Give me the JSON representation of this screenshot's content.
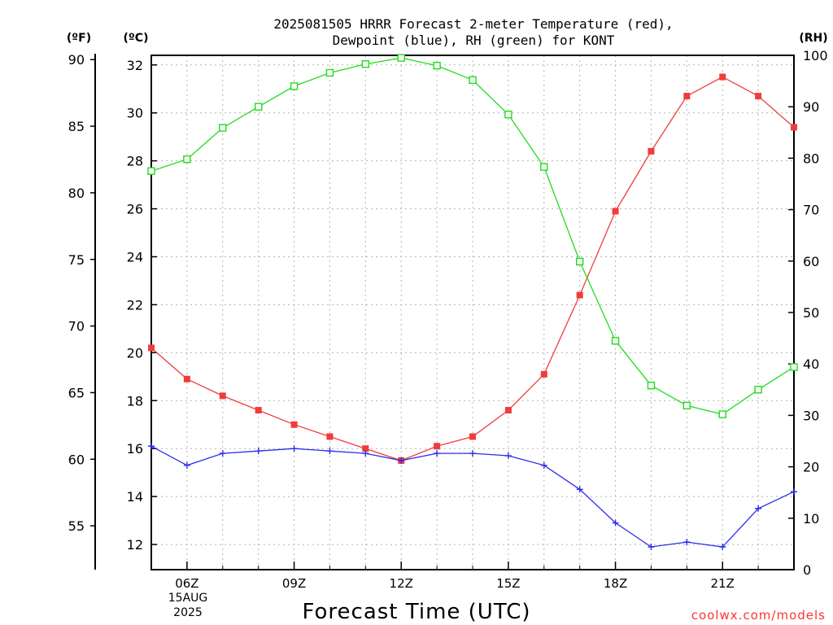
{
  "chart_data": {
    "type": "line",
    "title_lines": [
      "2025081505 HRRR Forecast 2-meter Temperature (red),",
      "Dewpoint (blue), RH (green) for KONT"
    ],
    "xlabel": "Forecast Time (UTC)",
    "x_hours": [
      5,
      6,
      7,
      8,
      9,
      10,
      11,
      12,
      13,
      14,
      15,
      16,
      17,
      18,
      19,
      20,
      21,
      22,
      23
    ],
    "xlim": [
      5,
      23
    ],
    "x_ticks": [
      {
        "hour": 6,
        "label": "06Z"
      },
      {
        "hour": 9,
        "label": "09Z"
      },
      {
        "hour": 12,
        "label": "12Z"
      },
      {
        "hour": 15,
        "label": "15Z"
      },
      {
        "hour": 18,
        "label": "18Z"
      },
      {
        "hour": 21,
        "label": "21Z"
      }
    ],
    "date_label": [
      "15AUG",
      "2025"
    ],
    "y_celsius": {
      "unit_label": "(ºC)",
      "ylim": [
        10.95,
        32.4
      ],
      "ticks": [
        12,
        14,
        16,
        18,
        20,
        22,
        24,
        26,
        28,
        30,
        32
      ]
    },
    "y_fahrenheit": {
      "unit_label": "(ºF)",
      "ticks": [
        55,
        60,
        65,
        70,
        75,
        80,
        85,
        90
      ]
    },
    "y_rh": {
      "unit_label": "(RH)",
      "ylim": [
        0,
        100
      ],
      "ticks": [
        0,
        10,
        20,
        30,
        40,
        50,
        60,
        70,
        80,
        90,
        100
      ]
    },
    "grid": true,
    "series": [
      {
        "key": "temperature",
        "color": "#f03c3c",
        "marker": "filled-square",
        "axis": "celsius",
        "values": [
          20.2,
          18.9,
          18.2,
          17.6,
          17.0,
          16.5,
          16.0,
          15.5,
          16.1,
          16.5,
          17.6,
          19.1,
          22.4,
          25.9,
          28.4,
          30.7,
          31.5,
          30.7,
          29.4
        ]
      },
      {
        "key": "dewpoint",
        "color": "#2c2ceb",
        "marker": "plus",
        "axis": "celsius",
        "values": [
          16.1,
          15.3,
          15.8,
          15.9,
          16.0,
          15.9,
          15.8,
          15.5,
          15.8,
          15.8,
          15.7,
          15.3,
          14.3,
          12.9,
          11.9,
          12.1,
          11.9,
          13.5,
          14.2
        ]
      },
      {
        "key": "rh",
        "color": "#1fdc1f",
        "marker": "open-square",
        "axis": "rh",
        "values": [
          77.5,
          79.8,
          85.9,
          90.0,
          94.0,
          96.6,
          98.3,
          99.5,
          98.0,
          95.2,
          88.5,
          78.3,
          59.9,
          44.5,
          35.8,
          31.9,
          30.2,
          35.0,
          39.4
        ]
      }
    ]
  },
  "watermark": "coolwx.com/models"
}
